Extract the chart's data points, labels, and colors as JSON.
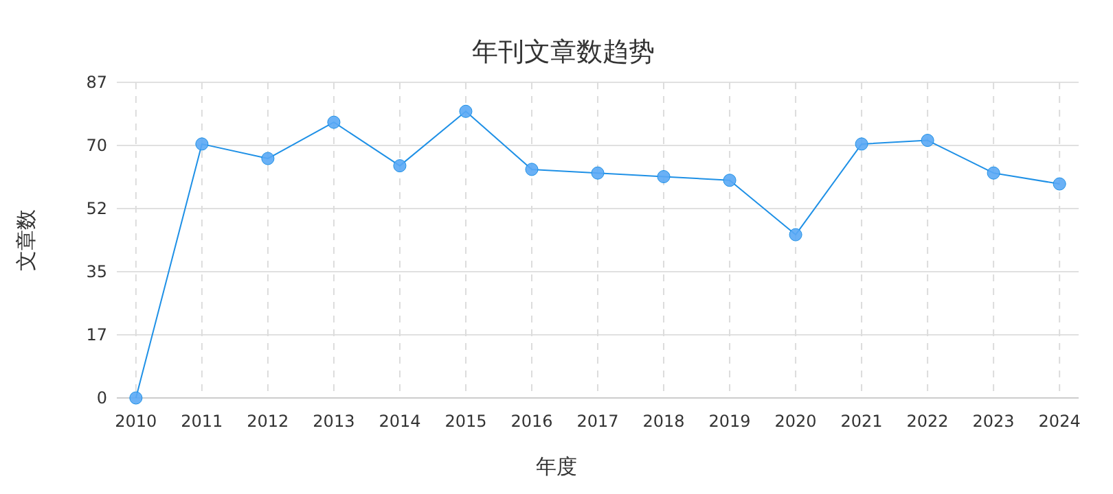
{
  "chart_data": {
    "type": "line",
    "title": "年刊文章数趋势",
    "xlabel": "年度",
    "ylabel": "文章数",
    "categories": [
      "2010",
      "2011",
      "2012",
      "2013",
      "2014",
      "2015",
      "2016",
      "2017",
      "2018",
      "2019",
      "2020",
      "2021",
      "2022",
      "2023",
      "2024"
    ],
    "series": [
      {
        "color": "#1e90e6",
        "values": [
          0,
          70,
          66,
          76,
          64,
          79,
          63,
          62,
          61,
          60,
          45,
          70,
          71,
          62,
          59
        ]
      }
    ],
    "ylim": [
      0,
      87
    ],
    "yticks": [
      0,
      {
        "value": 17.4,
        "label": "17"
      },
      {
        "value": 34.8,
        "label": "35"
      },
      {
        "value": 52.2,
        "label": "52"
      },
      {
        "value": 69.6,
        "label": "70"
      },
      87
    ],
    "grid": true,
    "marker": "circle",
    "line_style": "solid"
  }
}
